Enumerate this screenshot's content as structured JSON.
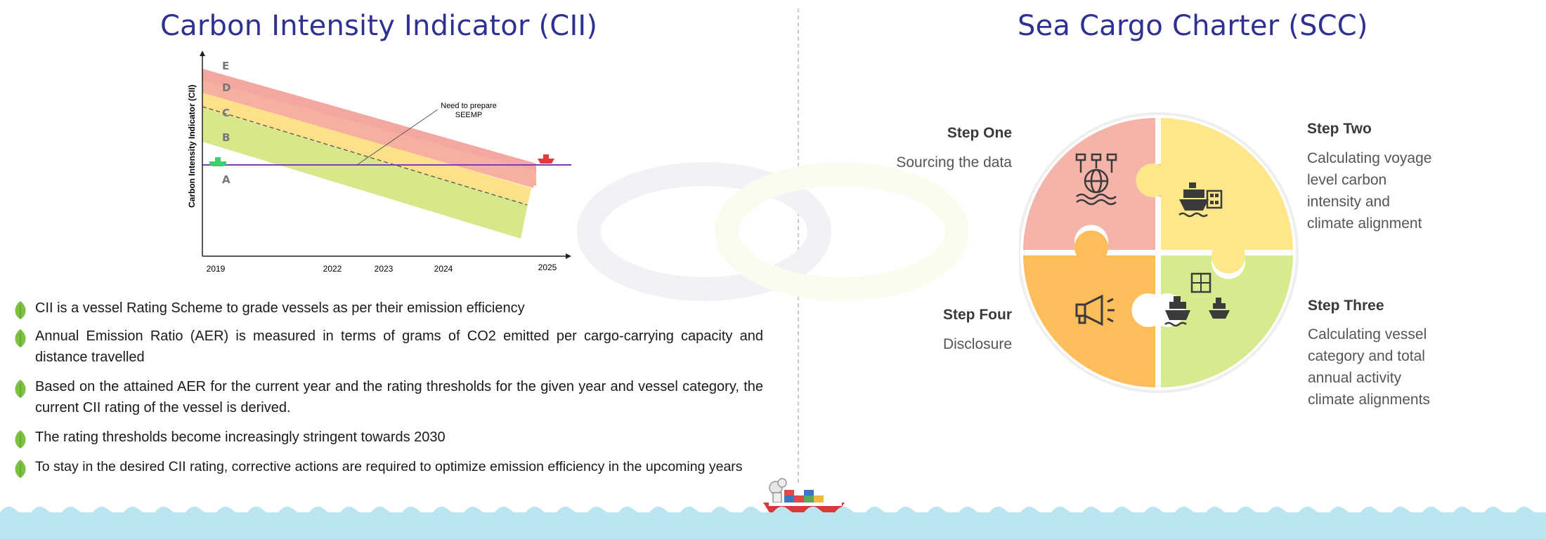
{
  "cii": {
    "title": "Carbon Intensity Indicator (CII)",
    "chart_data": {
      "type": "area",
      "ylabel": "Carbon  Intensity Indicator (CII)",
      "x_ticks": [
        "2019",
        "2022",
        "2023",
        "2024",
        "2025"
      ],
      "bands": [
        {
          "label": "E",
          "color": "#f4a6a0"
        },
        {
          "label": "D",
          "color": "#f7c9a0"
        },
        {
          "label": "C",
          "color": "#fde18a"
        },
        {
          "label": "B",
          "color": "#d6e88a"
        },
        {
          "label": "A",
          "color": "#ffffff"
        }
      ],
      "annotation": "Need to prepare SEEMP",
      "annotation_lines": [
        "Need to prepare",
        "SEEMP"
      ],
      "attained_line_color": "#7b3fb5",
      "ship_2019_color": "#3ccf6b",
      "ship_2025_color": "#e23b3b"
    },
    "bullets": [
      "CII is a vessel Rating Scheme to grade vessels as per their emission efficiency",
      "Annual Emission Ratio (AER) is measured in terms of grams of CO2 emitted per cargo-carrying capacity and distance travelled",
      "Based on the attained AER for the current year and the rating thresholds for the given year and vessel category, the current CII rating of the vessel is derived.",
      "The rating thresholds become increasingly stringent towards 2030",
      "To stay in the desired CII rating, corrective actions are required to optimize emission efficiency in the upcoming years"
    ]
  },
  "scc": {
    "title": "Sea Cargo Charter (SCC)",
    "steps": [
      {
        "title": "Step One",
        "desc": "Sourcing the data",
        "icon": "globe-data-icon",
        "color": "#f4b4aa"
      },
      {
        "title": "Step Two",
        "desc_lines": [
          "Calculating voyage",
          "level carbon",
          "intensity and",
          "climate alignment"
        ],
        "icon": "ship-calculator-icon",
        "color": "#fde78a"
      },
      {
        "title": "Step Three",
        "desc_lines": [
          "Calculating vessel",
          "category and total",
          "annual activity",
          "climate alignments"
        ],
        "icon": "two-ships-calculator-icon",
        "color": "#d6ea8e"
      },
      {
        "title": "Step Four",
        "desc": "Disclosure",
        "icon": "megaphone-icon",
        "color": "#fdbd5a"
      }
    ]
  },
  "colors": {
    "title": "#2e3192",
    "leaf": "#7cc142",
    "wave": "#b9e6f0"
  }
}
